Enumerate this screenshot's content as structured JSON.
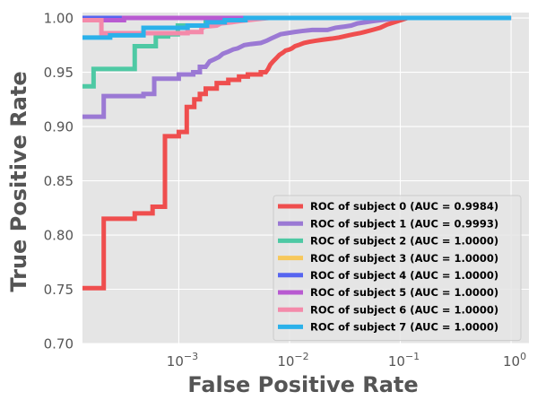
{
  "chart_data": {
    "type": "line",
    "title": "",
    "xlabel": "False Positive Rate",
    "ylabel": "True Positive Rate",
    "xscale": "log",
    "xlim": [
      0.000135,
      1.45
    ],
    "ylim": [
      0.7,
      1.005
    ],
    "grid": true,
    "background": "#e5e5e5",
    "xticks": [
      {
        "value": 0.001,
        "base": "10",
        "exp": "−3"
      },
      {
        "value": 0.01,
        "base": "10",
        "exp": "−2"
      },
      {
        "value": 0.1,
        "base": "10",
        "exp": "−1"
      },
      {
        "value": 1,
        "base": "10",
        "exp": "0"
      }
    ],
    "yticks": [
      "0.70",
      "0.75",
      "0.80",
      "0.85",
      "0.90",
      "0.95",
      "1.00"
    ],
    "legend_position": "lower-right",
    "series": [
      {
        "name": "ROC of subject 0 (AUC = 0.9984)",
        "color": "#ef4e4e",
        "points": [
          [
            0.0001,
            0.751
          ],
          [
            0.00021,
            0.751
          ],
          [
            0.00021,
            0.815
          ],
          [
            0.0004,
            0.815
          ],
          [
            0.0004,
            0.82
          ],
          [
            0.00058,
            0.82
          ],
          [
            0.00058,
            0.826
          ],
          [
            0.00075,
            0.826
          ],
          [
            0.00075,
            0.891
          ],
          [
            0.001,
            0.891
          ],
          [
            0.001,
            0.895
          ],
          [
            0.00118,
            0.895
          ],
          [
            0.00118,
            0.918
          ],
          [
            0.00138,
            0.918
          ],
          [
            0.00138,
            0.925
          ],
          [
            0.00155,
            0.925
          ],
          [
            0.00155,
            0.93
          ],
          [
            0.00175,
            0.93
          ],
          [
            0.00175,
            0.935
          ],
          [
            0.0022,
            0.935
          ],
          [
            0.0022,
            0.94
          ],
          [
            0.0028,
            0.94
          ],
          [
            0.0028,
            0.943
          ],
          [
            0.0035,
            0.943
          ],
          [
            0.0035,
            0.946
          ],
          [
            0.0042,
            0.946
          ],
          [
            0.0042,
            0.948
          ],
          [
            0.0055,
            0.948
          ],
          [
            0.0055,
            0.95
          ],
          [
            0.0061,
            0.95
          ],
          [
            0.0064,
            0.953
          ],
          [
            0.0067,
            0.957
          ],
          [
            0.0071,
            0.96
          ],
          [
            0.0076,
            0.963
          ],
          [
            0.0081,
            0.966
          ],
          [
            0.0087,
            0.968
          ],
          [
            0.0092,
            0.97
          ],
          [
            0.01,
            0.971
          ],
          [
            0.0105,
            0.972
          ],
          [
            0.0112,
            0.974
          ],
          [
            0.012,
            0.975
          ],
          [
            0.0135,
            0.977
          ],
          [
            0.015,
            0.978
          ],
          [
            0.0172,
            0.979
          ],
          [
            0.02,
            0.98
          ],
          [
            0.024,
            0.981
          ],
          [
            0.028,
            0.982
          ],
          [
            0.034,
            0.984
          ],
          [
            0.038,
            0.985
          ],
          [
            0.043,
            0.986
          ],
          [
            0.047,
            0.987
          ],
          [
            0.056,
            0.989
          ],
          [
            0.066,
            0.991
          ],
          [
            0.076,
            0.994
          ],
          [
            0.088,
            0.996
          ],
          [
            0.101,
            0.998
          ],
          [
            0.116,
            1.0
          ],
          [
            1.0,
            1.0
          ]
        ]
      },
      {
        "name": "ROC of subject 1 (AUC = 0.9993)",
        "color": "#9b79d4",
        "points": [
          [
            0.0001,
            0.909
          ],
          [
            0.00021,
            0.909
          ],
          [
            0.00021,
            0.928
          ],
          [
            0.00048,
            0.928
          ],
          [
            0.00048,
            0.93
          ],
          [
            0.0006,
            0.93
          ],
          [
            0.0006,
            0.944
          ],
          [
            0.001,
            0.944
          ],
          [
            0.001,
            0.948
          ],
          [
            0.00135,
            0.948
          ],
          [
            0.00135,
            0.95
          ],
          [
            0.00155,
            0.95
          ],
          [
            0.00155,
            0.955
          ],
          [
            0.00175,
            0.955
          ],
          [
            0.0019,
            0.96
          ],
          [
            0.0021,
            0.962
          ],
          [
            0.0023,
            0.964
          ],
          [
            0.0025,
            0.967
          ],
          [
            0.0028,
            0.969
          ],
          [
            0.0031,
            0.971
          ],
          [
            0.0034,
            0.972
          ],
          [
            0.0039,
            0.975
          ],
          [
            0.0045,
            0.976
          ],
          [
            0.0055,
            0.977
          ],
          [
            0.0062,
            0.979
          ],
          [
            0.0068,
            0.981
          ],
          [
            0.0075,
            0.983
          ],
          [
            0.0083,
            0.985
          ],
          [
            0.0095,
            0.986
          ],
          [
            0.011,
            0.987
          ],
          [
            0.013,
            0.988
          ],
          [
            0.016,
            0.989
          ],
          [
            0.022,
            0.989
          ],
          [
            0.026,
            0.991
          ],
          [
            0.031,
            0.992
          ],
          [
            0.036,
            0.993
          ],
          [
            0.041,
            0.995
          ],
          [
            0.048,
            0.996
          ],
          [
            0.056,
            0.997
          ],
          [
            0.066,
            0.998
          ],
          [
            0.08,
            0.999
          ],
          [
            0.1,
            1.0
          ],
          [
            1.0,
            1.0
          ]
        ]
      },
      {
        "name": "ROC of subject 2 (AUC = 1.0000)",
        "color": "#4ec9a4",
        "points": [
          [
            0.0001,
            0.937
          ],
          [
            0.00017,
            0.937
          ],
          [
            0.00017,
            0.953
          ],
          [
            0.0004,
            0.953
          ],
          [
            0.0004,
            0.974
          ],
          [
            0.00062,
            0.974
          ],
          [
            0.00062,
            0.983
          ],
          [
            0.0008,
            0.983
          ],
          [
            0.0008,
            0.985
          ],
          [
            0.00098,
            0.985
          ],
          [
            0.00098,
            0.993
          ],
          [
            0.00175,
            0.993
          ],
          [
            0.00175,
            0.997
          ],
          [
            0.0027,
            0.997
          ],
          [
            0.0027,
            1.0
          ],
          [
            1.0,
            1.0
          ]
        ]
      },
      {
        "name": "ROC of subject 3 (AUC = 1.0000)",
        "color": "#f7c85b",
        "points": [
          [
            0.0001,
            1.0
          ],
          [
            1.0,
            1.0
          ]
        ]
      },
      {
        "name": "ROC of subject 4 (AUC = 1.0000)",
        "color": "#5665f0",
        "points": [
          [
            0.0001,
            1.0
          ],
          [
            1.0,
            1.0
          ]
        ]
      },
      {
        "name": "ROC of subject 5 (AUC = 1.0000)",
        "color": "#b85ad1",
        "points": [
          [
            0.0001,
            0.998
          ],
          [
            0.00032,
            0.998
          ],
          [
            0.00032,
            1.0
          ],
          [
            1.0,
            1.0
          ]
        ]
      },
      {
        "name": "ROC of subject 6 (AUC = 1.0000)",
        "color": "#f48aaa",
        "points": [
          [
            0.0001,
            0.998
          ],
          [
            0.0002,
            0.998
          ],
          [
            0.0002,
            0.986
          ],
          [
            0.0012,
            0.986
          ],
          [
            0.0012,
            0.987
          ],
          [
            0.0016,
            0.987
          ],
          [
            0.0016,
            0.99
          ],
          [
            0.0017,
            0.992
          ],
          [
            0.0022,
            0.993
          ],
          [
            0.0024,
            0.995
          ],
          [
            0.003,
            0.996
          ],
          [
            0.0035,
            0.997
          ],
          [
            0.0042,
            0.998
          ],
          [
            0.0052,
            0.999
          ],
          [
            0.0065,
            1.0
          ],
          [
            1.0,
            1.0
          ]
        ]
      },
      {
        "name": "ROC of subject 7 (AUC = 1.0000)",
        "color": "#2bb1ea",
        "points": [
          [
            0.0001,
            0.982
          ],
          [
            0.00024,
            0.982
          ],
          [
            0.00024,
            0.984
          ],
          [
            0.00048,
            0.984
          ],
          [
            0.00048,
            0.991
          ],
          [
            0.0012,
            0.991
          ],
          [
            0.0012,
            0.993
          ],
          [
            0.0018,
            0.993
          ],
          [
            0.0018,
            0.996
          ],
          [
            0.0026,
            0.996
          ],
          [
            0.0026,
            0.998
          ],
          [
            0.004,
            0.998
          ],
          [
            0.004,
            1.0
          ],
          [
            1.0,
            1.0
          ]
        ]
      }
    ]
  }
}
